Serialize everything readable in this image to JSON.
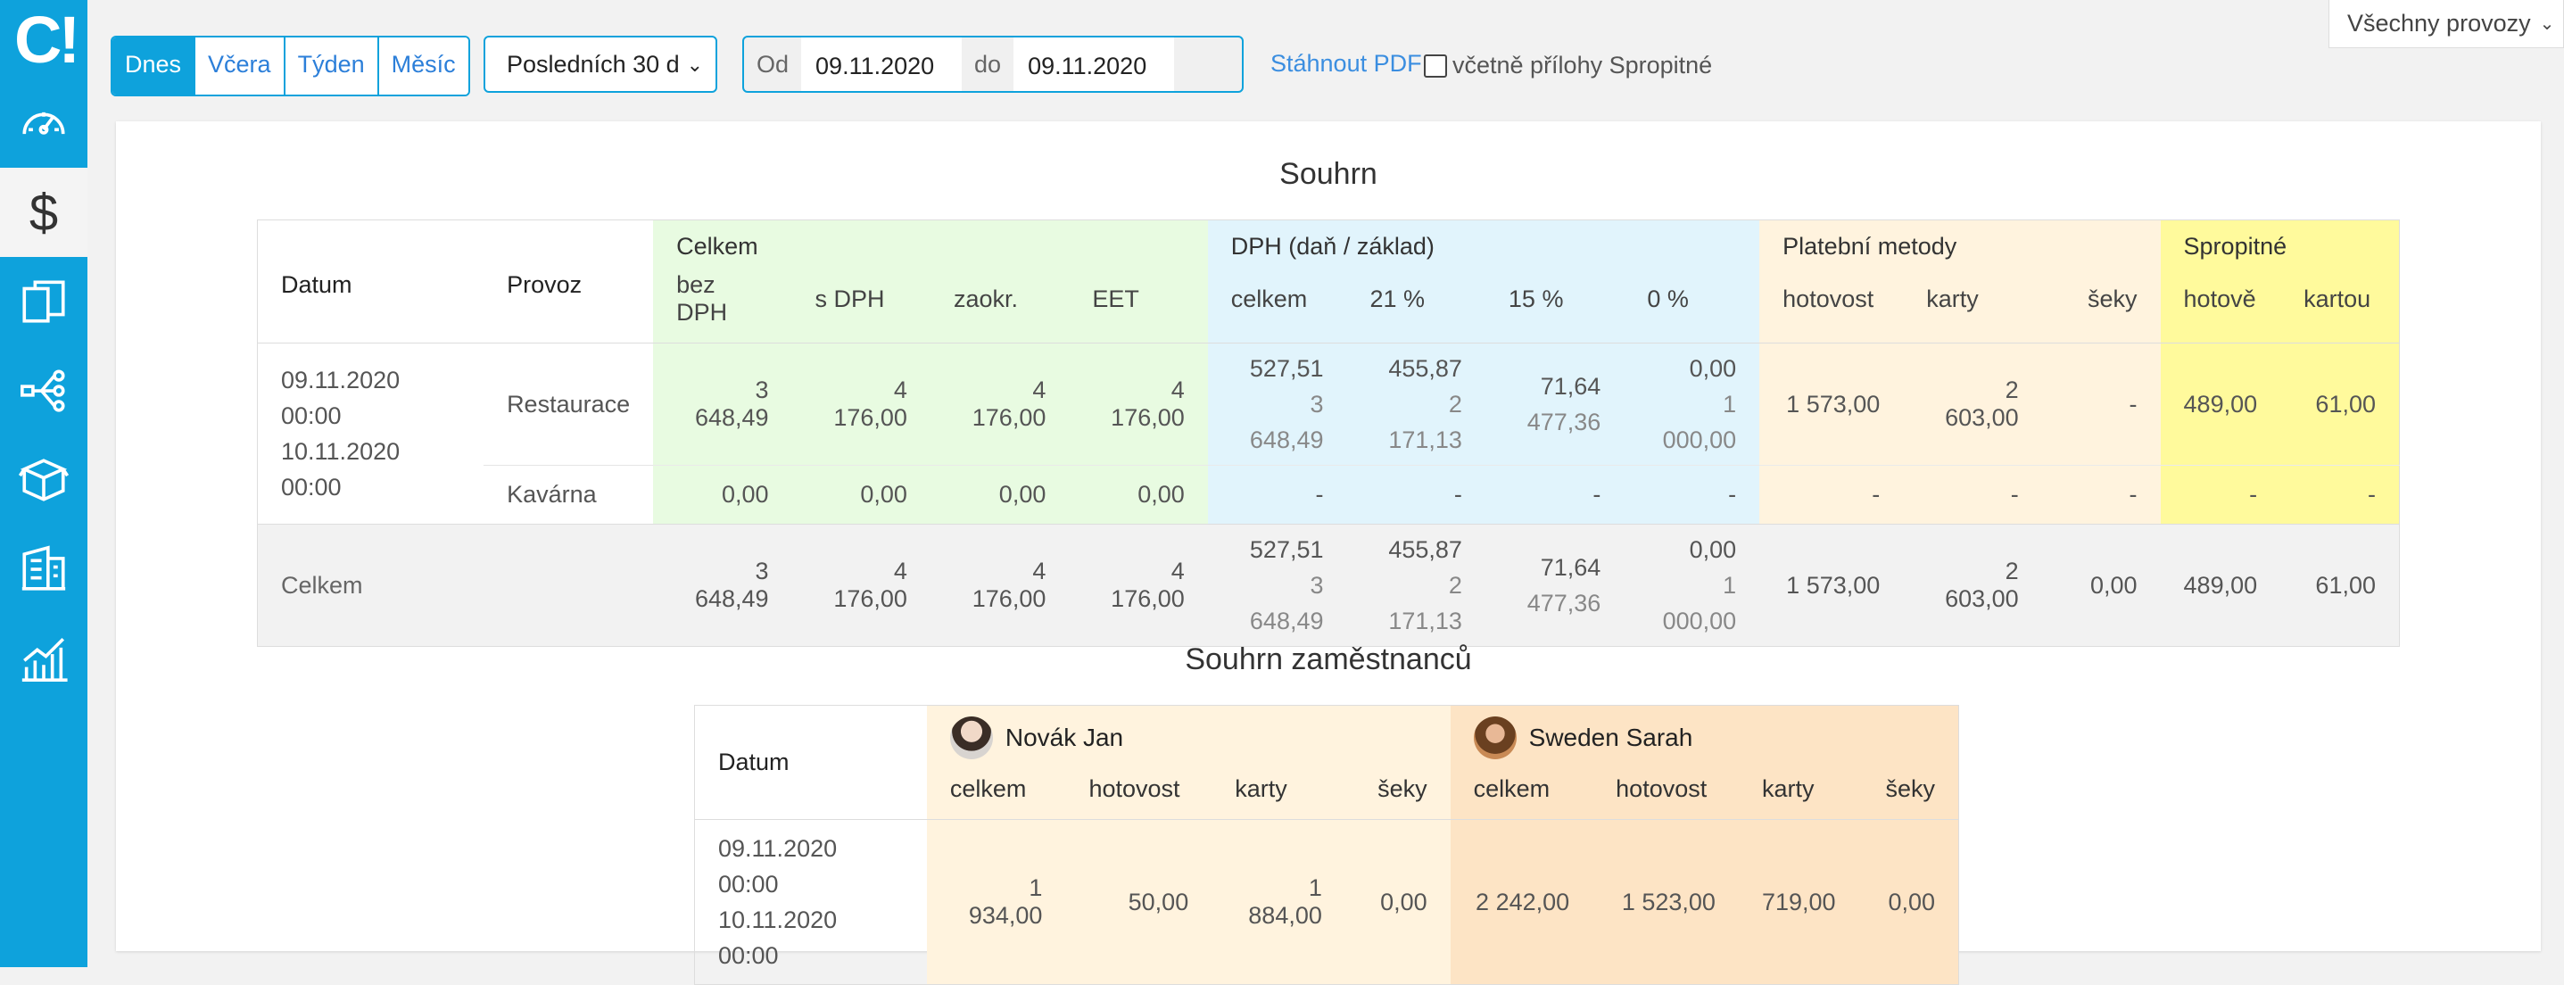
{
  "sidebar": {
    "logo": "C!",
    "items": [
      {
        "icon": "speedometer-icon"
      },
      {
        "icon": "dollar-icon",
        "label": "$"
      },
      {
        "icon": "documents-icon"
      },
      {
        "icon": "network-icon"
      },
      {
        "icon": "boxes-icon"
      },
      {
        "icon": "building-icon"
      },
      {
        "icon": "chart-icon"
      }
    ]
  },
  "toolbar": {
    "periods": [
      "Dnes",
      "Včera",
      "Týden",
      "Měsíc"
    ],
    "active_period": "Dnes",
    "range_select": "Posledních 30 d",
    "from_label": "Od",
    "from_date": "09.11.2020",
    "to_label": "do",
    "to_date": "09.11.2020",
    "pdf_link": "Stáhnout PDF",
    "tip_checkbox_label": "včetně přílohy Spropitné",
    "provoz_select": "Všechny provozy"
  },
  "summary": {
    "title": "Souhrn",
    "col_datum": "Datum",
    "col_provoz": "Provoz",
    "group_celkem": "Celkem",
    "group_dph": "DPH (daň / základ)",
    "group_platebni": "Platební metody",
    "group_spropitne": "Spropitné",
    "sub": {
      "bez_dph": "bez DPH",
      "s_dph": "s DPH",
      "zaokr": "zaokr.",
      "eet": "EET",
      "dph_celkem": "celkem",
      "dph21": "21 %",
      "dph15": "15 %",
      "dph0": "0 %",
      "hotovost": "hotovost",
      "karty": "karty",
      "seky": "šeky",
      "tip_hotove": "hotově",
      "tip_kartou": "kartou"
    },
    "date_from": "09.11.2020 00:00",
    "date_to": "10.11.2020 00:00",
    "rows": [
      {
        "provoz": "Restaurace",
        "bez_dph": "3 648,49",
        "s_dph": "4 176,00",
        "zaokr": "4 176,00",
        "eet": "4 176,00",
        "dph_celkem_dan": "527,51",
        "dph_celkem_zaklad": "3 648,49",
        "dph21_dan": "455,87",
        "dph21_zaklad": "2 171,13",
        "dph15_dan": "71,64",
        "dph15_zaklad": "477,36",
        "dph0_dan": "0,00",
        "dph0_zaklad": "1 000,00",
        "hotovost": "1 573,00",
        "karty": "2 603,00",
        "seky": "-",
        "tip_hotove": "489,00",
        "tip_kartou": "61,00"
      },
      {
        "provoz": "Kavárna",
        "bez_dph": "0,00",
        "s_dph": "0,00",
        "zaokr": "0,00",
        "eet": "0,00",
        "dph_celkem": "-",
        "dph21": "-",
        "dph15": "-",
        "dph0": "-",
        "hotovost": "-",
        "karty": "-",
        "seky": "-",
        "tip_hotove": "-",
        "tip_kartou": "-"
      }
    ],
    "total": {
      "label": "Celkem",
      "bez_dph": "3 648,49",
      "s_dph": "4 176,00",
      "zaokr": "4 176,00",
      "eet": "4 176,00",
      "dph_celkem_dan": "527,51",
      "dph_celkem_zaklad": "3 648,49",
      "dph21_dan": "455,87",
      "dph21_zaklad": "2 171,13",
      "dph15_dan": "71,64",
      "dph15_zaklad": "477,36",
      "dph0_dan": "0,00",
      "dph0_zaklad": "1 000,00",
      "hotovost": "1 573,00",
      "karty": "2 603,00",
      "seky": "0,00",
      "tip_hotove": "489,00",
      "tip_kartou": "61,00"
    }
  },
  "employees": {
    "title": "Souhrn zaměstnanců",
    "col_datum": "Datum",
    "sub": {
      "celkem": "celkem",
      "hotovost": "hotovost",
      "karty": "karty",
      "seky": "šeky"
    },
    "date_from": "09.11.2020 00:00",
    "date_to": "10.11.2020 00:00",
    "people": [
      {
        "name": "Novák Jan",
        "celkem": "1 934,00",
        "hotovost": "50,00",
        "karty": "1 884,00",
        "seky": "0,00",
        "color": "#fff3de"
      },
      {
        "name": "Sweden Sarah",
        "celkem": "2 242,00",
        "hotovost": "1 523,00",
        "karty": "719,00",
        "seky": "0,00",
        "color": "#fde4c5"
      }
    ]
  }
}
